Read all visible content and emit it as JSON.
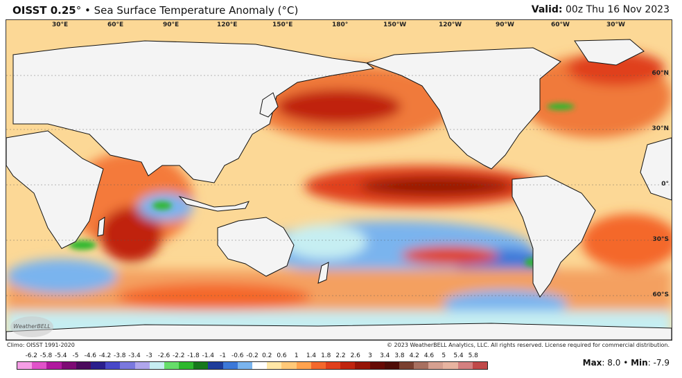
{
  "header": {
    "product": "OISST 0.25",
    "degree": "°",
    "bullet": "•",
    "title": "Sea Surface Temperature Anomaly (°C)",
    "valid_label": "Valid:",
    "valid_value": "00z Thu 16 Nov 2023"
  },
  "map": {
    "lon_labels": [
      "30°E",
      "60°E",
      "90°E",
      "120°E",
      "150°E",
      "180°",
      "150°W",
      "120°W",
      "90°W",
      "60°W",
      "30°W"
    ],
    "lat_labels": [
      "60°N",
      "30°N",
      "0°",
      "30°S",
      "60°S"
    ],
    "watermark": "WeatherBELL"
  },
  "footer": {
    "climo": "Climo: OISST 1991-2020",
    "copyright": "© 2023 WeatherBELL Analytics, LLC. All rights reserved. License required for commercial distribution."
  },
  "colorbar": {
    "ticks": [
      "-6.2",
      "-5.8",
      "-5.4",
      "-5",
      "-4.6",
      "-4.2",
      "-3.8",
      "-3.4",
      "-3",
      "-2.6",
      "-2.2",
      "-1.8",
      "-1.4",
      "-1",
      "-0.6",
      "-0.2",
      "0.2",
      "0.6",
      "1",
      "1.4",
      "1.8",
      "2.2",
      "2.6",
      "3",
      "3.4",
      "3.8",
      "4.2",
      "4.6",
      "5",
      "5.4",
      "5.8"
    ],
    "colors": [
      "#f59ee6",
      "#e052c9",
      "#b0189e",
      "#7d0a74",
      "#4b0a5c",
      "#2a1e8c",
      "#4848c8",
      "#7a78de",
      "#b0a6ec",
      "#c6eef2",
      "#66de6a",
      "#2eb82e",
      "#16781c",
      "#1e3c9a",
      "#3c78d8",
      "#7ab4ee",
      "#ffffff",
      "#ffe7a6",
      "#ffc978",
      "#ffa24e",
      "#f4682c",
      "#e0401c",
      "#c0240e",
      "#961406",
      "#660a04",
      "#4e0c06",
      "#7a4030",
      "#a87060",
      "#d6a090",
      "#e8b4a0",
      "#d48080",
      "#c04848"
    ]
  },
  "stats": {
    "max_label": "Max",
    "max_value": "8.0",
    "bullet": "•",
    "min_label": "Min",
    "min_value": "-7.9"
  }
}
